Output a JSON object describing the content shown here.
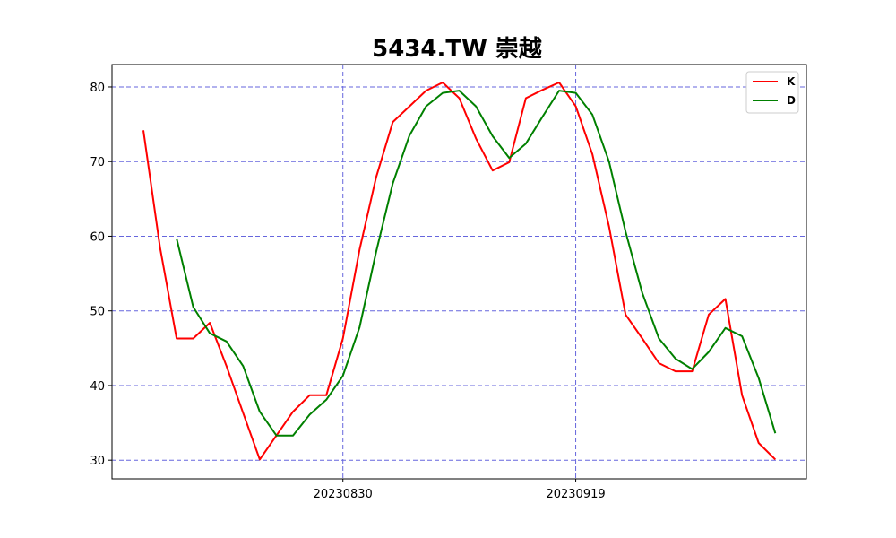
{
  "chart_data": {
    "type": "line",
    "title": "5434.TW 崇越",
    "xlabel": "",
    "ylabel": "",
    "ylim": [
      27.5,
      83
    ],
    "yticks": [
      30,
      40,
      50,
      60,
      70,
      80
    ],
    "grid": true,
    "legend_position": "top-right",
    "x_tick_labels": [
      {
        "index": 12,
        "label": "20230830"
      },
      {
        "index": 26,
        "label": "20230919"
      }
    ],
    "series": [
      {
        "name": "K",
        "color": "#ff0000",
        "start_index": 0,
        "values": [
          74.2,
          58.5,
          46.3,
          46.3,
          48.4,
          42.6,
          36.3,
          30.1,
          33.3,
          36.5,
          38.7,
          38.7,
          46.3,
          58.2,
          67.9,
          75.3,
          77.4,
          79.5,
          80.6,
          78.5,
          73.1,
          68.8,
          69.9,
          78.5,
          79.6,
          80.6,
          77.4,
          71.0,
          61.3,
          49.5,
          46.3,
          43.0,
          41.9,
          41.9,
          49.5,
          51.6,
          38.7,
          32.3,
          30.1
        ]
      },
      {
        "name": "D",
        "color": "#008000",
        "start_index": 2,
        "values": [
          59.7,
          50.5,
          47.0,
          45.9,
          42.6,
          36.5,
          33.3,
          33.3,
          36.1,
          38.1,
          41.3,
          47.8,
          57.9,
          67.1,
          73.5,
          77.4,
          79.2,
          79.5,
          77.4,
          73.4,
          70.5,
          72.4,
          76.0,
          79.5,
          79.2,
          76.3,
          70.0,
          60.6,
          52.4,
          46.3,
          43.6,
          42.2,
          44.5,
          47.7,
          46.6,
          41.0,
          33.6
        ]
      }
    ]
  }
}
